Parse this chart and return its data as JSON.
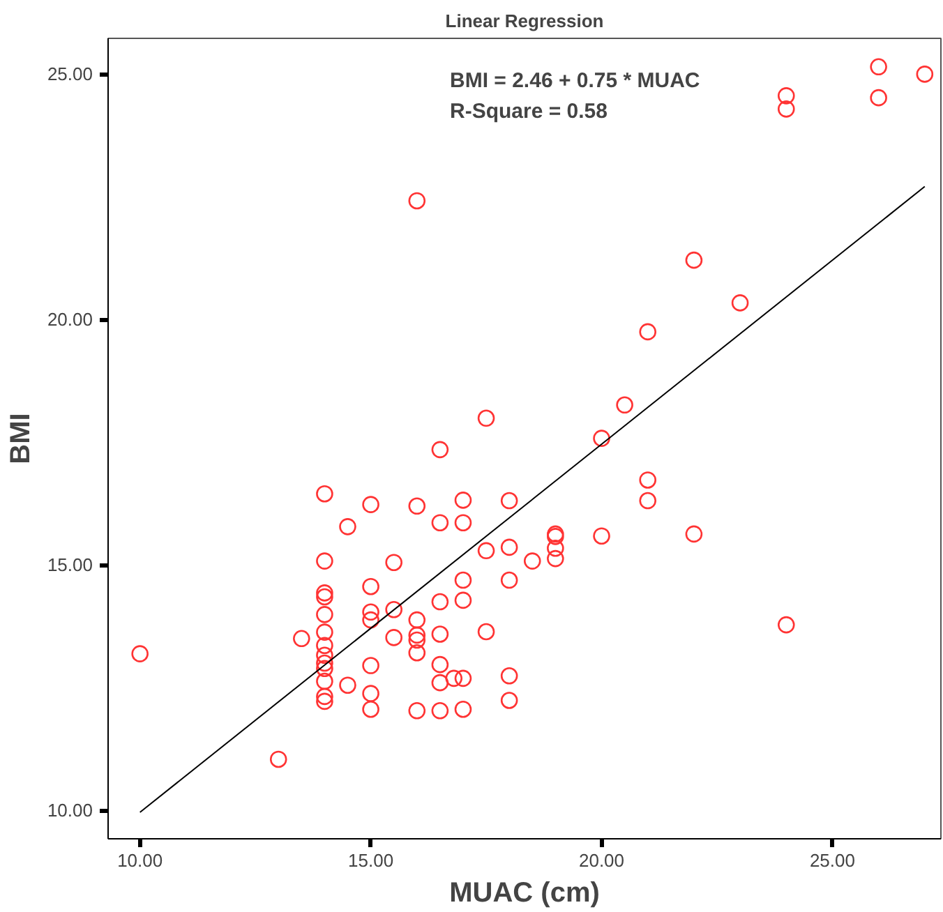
{
  "chart_data": {
    "type": "scatter",
    "title": "Linear Regression",
    "xlabel": "MUAC (cm)",
    "ylabel": "BMI",
    "annotations": [
      "BMI = 2.46 + 0.75 * MUAC",
      "R-Square = 0.58"
    ],
    "xlim": [
      9.31,
      27.35
    ],
    "ylim": [
      9.42,
      25.73
    ],
    "xticks": [
      {
        "value": 10,
        "label": "10.00"
      },
      {
        "value": 15,
        "label": "15.00"
      },
      {
        "value": 20,
        "label": "20.00"
      },
      {
        "value": 25,
        "label": "25.00"
      }
    ],
    "yticks": [
      {
        "value": 10,
        "label": "10.00"
      },
      {
        "value": 15,
        "label": "15.00"
      },
      {
        "value": 20,
        "label": "20.00"
      },
      {
        "value": 25,
        "label": "25.00"
      }
    ],
    "grid": false,
    "series": [
      {
        "marker": "circle",
        "color": "#ff3333",
        "x": [
          10,
          13,
          13.5,
          14,
          14,
          14,
          14,
          14,
          14,
          14,
          14,
          14,
          14,
          14,
          14,
          14,
          14.5,
          14.5,
          15,
          15,
          15,
          15,
          15,
          15,
          15,
          15.5,
          15.5,
          15.5,
          16,
          16,
          16,
          16,
          16,
          16,
          16,
          16.5,
          16.5,
          16.5,
          16.5,
          16.5,
          16.5,
          16.5,
          16.8,
          17,
          17,
          17,
          17,
          17,
          17,
          17.5,
          17.5,
          17.5,
          18,
          18,
          18,
          18,
          18,
          18.5,
          19,
          19,
          19,
          19,
          20,
          20,
          20.5,
          21,
          21,
          21,
          22,
          22,
          23,
          24,
          24,
          24,
          26,
          26,
          27
        ],
        "values": [
          13.19,
          11.04,
          13.5,
          16.45,
          15.08,
          14.43,
          14.35,
          13.99,
          13.63,
          13.36,
          13.16,
          13.0,
          12.89,
          12.63,
          12.32,
          12.22,
          12.55,
          15.78,
          16.23,
          14.56,
          14.04,
          13.88,
          12.95,
          12.38,
          12.06,
          15.05,
          14.09,
          13.52,
          22.42,
          16.2,
          13.88,
          13.57,
          13.47,
          13.21,
          12.03,
          17.35,
          15.86,
          14.25,
          13.59,
          12.97,
          12.6,
          12.03,
          12.69,
          16.32,
          15.86,
          14.69,
          14.28,
          12.69,
          12.06,
          17.99,
          15.29,
          13.64,
          16.31,
          15.36,
          14.69,
          12.74,
          12.24,
          15.08,
          15.63,
          15.58,
          15.34,
          15.13,
          17.58,
          15.59,
          18.26,
          19.75,
          16.73,
          16.31,
          21.21,
          15.63,
          20.34,
          24.56,
          24.29,
          13.78,
          25.15,
          24.52,
          25.0
        ]
      },
      {
        "type": "line",
        "marker": "none",
        "color": "#000000",
        "x": [
          10,
          27
        ],
        "values": [
          9.96,
          22.71
        ]
      }
    ]
  }
}
